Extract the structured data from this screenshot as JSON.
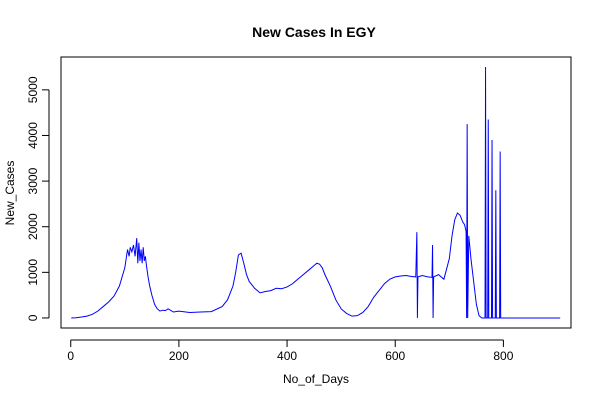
{
  "chart_data": {
    "type": "line",
    "title": "New Cases In EGY",
    "xlabel": "No_of_Days",
    "ylabel": "New_Cases",
    "xlim": [
      -18,
      925
    ],
    "ylim": [
      -220,
      5720
    ],
    "xticks": [
      0,
      200,
      400,
      600,
      800
    ],
    "yticks": [
      0,
      1000,
      2000,
      3000,
      4000,
      5000
    ],
    "grid": false,
    "legend": "none",
    "series_color": "#0000ff",
    "series": [
      {
        "x": [
          1,
          10,
          20,
          30,
          40,
          50,
          60,
          70,
          80,
          90,
          95,
          100,
          105,
          108,
          110,
          113,
          116,
          119,
          122,
          124,
          126,
          128,
          130,
          132,
          134,
          136,
          138,
          140,
          143,
          146,
          150,
          155,
          160,
          165,
          170,
          175,
          180,
          190,
          200,
          220,
          240,
          260,
          280,
          290,
          300,
          305,
          310,
          315,
          320,
          325,
          330,
          340,
          350,
          360,
          370,
          380,
          390,
          400,
          410,
          420,
          430,
          440,
          450,
          455,
          460,
          465,
          470,
          480,
          490,
          500,
          510,
          520,
          530,
          540,
          550,
          560,
          570,
          580,
          590,
          600,
          610,
          620,
          630,
          638,
          640,
          641,
          642,
          650,
          660,
          668,
          669,
          670,
          671,
          680,
          690,
          700,
          705,
          710,
          715,
          720,
          725,
          728,
          731,
          732,
          733,
          734,
          736,
          740,
          745,
          750,
          755,
          760,
          765,
          766,
          767,
          768,
          770,
          771,
          772,
          773,
          775,
          778,
          779,
          780,
          781,
          783,
          785,
          786,
          787,
          788,
          790,
          793,
          794,
          795,
          796,
          798,
          800,
          850,
          905
        ],
        "y": [
          0,
          5,
          20,
          40,
          80,
          150,
          250,
          350,
          480,
          700,
          900,
          1100,
          1500,
          1350,
          1550,
          1450,
          1600,
          1350,
          1750,
          1200,
          1650,
          1250,
          1500,
          1200,
          1550,
          1250,
          1350,
          1150,
          900,
          700,
          500,
          300,
          200,
          150,
          170,
          160,
          200,
          130,
          150,
          120,
          130,
          140,
          250,
          400,
          700,
          1000,
          1380,
          1420,
          1200,
          950,
          800,
          650,
          550,
          580,
          600,
          650,
          640,
          680,
          750,
          850,
          950,
          1050,
          1150,
          1200,
          1180,
          1100,
          950,
          700,
          400,
          200,
          100,
          40,
          50,
          120,
          250,
          450,
          600,
          750,
          850,
          900,
          920,
          930,
          910,
          900,
          1880,
          0,
          900,
          930,
          900,
          890,
          1600,
          0,
          900,
          950,
          850,
          1300,
          1800,
          2150,
          2300,
          2250,
          2100,
          2050,
          1900,
          0,
          4250,
          0,
          1800,
          1300,
          800,
          300,
          50,
          0,
          0,
          0,
          5500,
          0,
          0,
          0,
          4350,
          0,
          0,
          0,
          3900,
          0,
          0,
          0,
          0,
          2800,
          0,
          0,
          0,
          0,
          3650,
          0,
          0,
          0,
          0,
          0,
          0
        ]
      }
    ]
  }
}
